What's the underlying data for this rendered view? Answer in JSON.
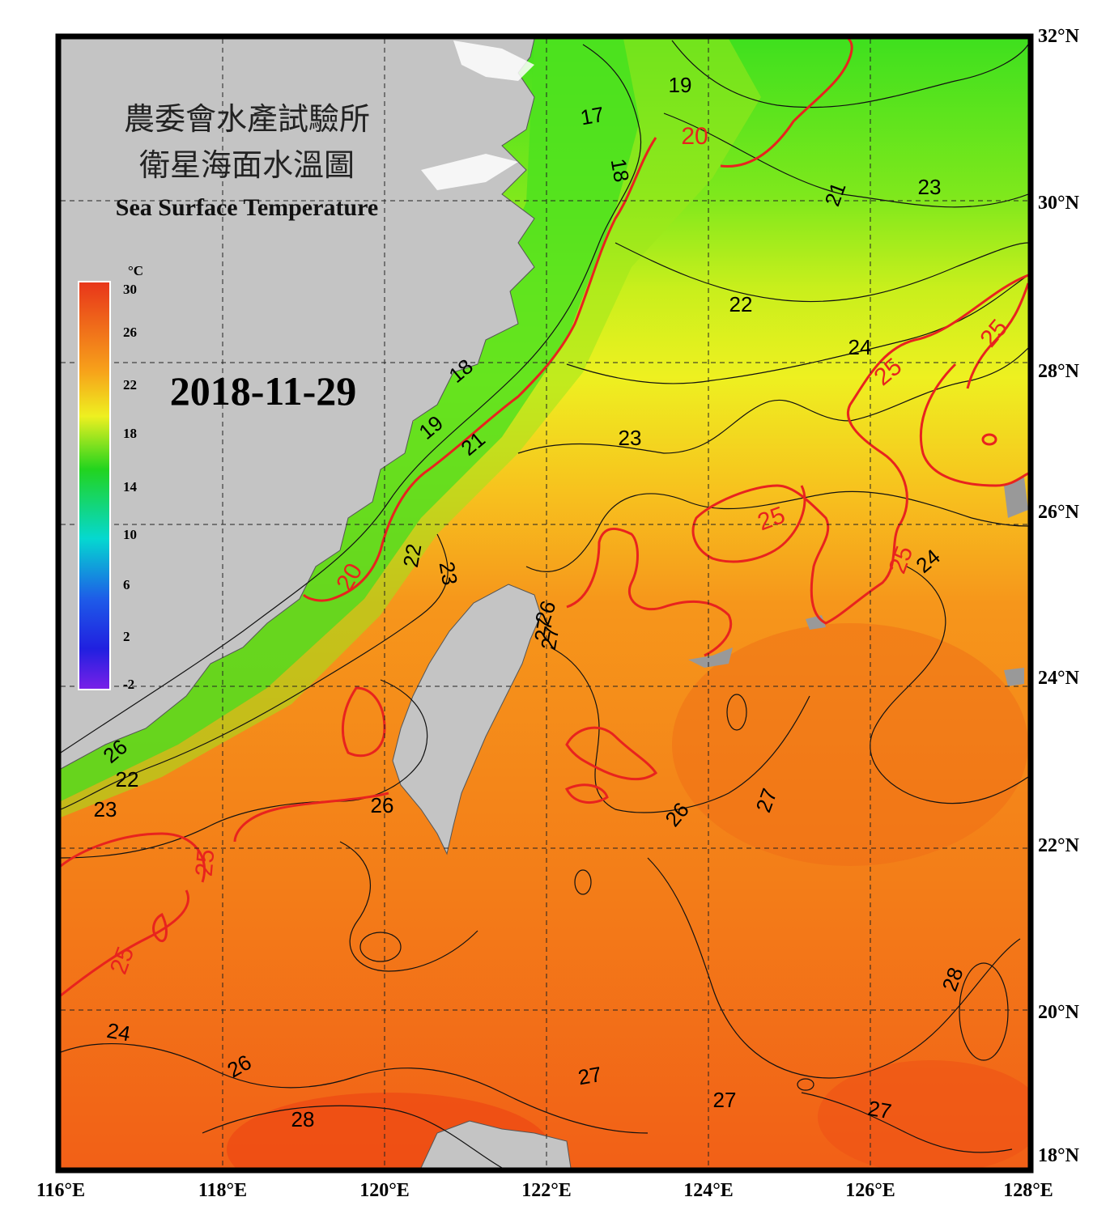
{
  "title": {
    "line1": "農委會水產試驗所",
    "line2": "衛星海面水溫圖",
    "english": "Sea Surface Temperature"
  },
  "date": "2018-11-29",
  "colorbar": {
    "unit": "°C",
    "ticks": [
      "30",
      "26",
      "22",
      "18",
      "14",
      "10",
      "6",
      "2",
      "-2"
    ],
    "colors": [
      "#e8351a",
      "#f7a21a",
      "#eef020",
      "#22d41e",
      "#05d8d0",
      "#1e5ae8",
      "#7a20e8"
    ]
  },
  "axes": {
    "lon_labels": [
      "116°E",
      "118°E",
      "120°E",
      "122°E",
      "124°E",
      "126°E",
      "128°E"
    ],
    "lat_labels": [
      "32°N",
      "30°N",
      "28°N",
      "26°N",
      "24°N",
      "22°N",
      "20°N",
      "18°N"
    ]
  },
  "contour_labels_black": [
    "19",
    "17",
    "18",
    "21",
    "23",
    "22",
    "24",
    "18",
    "19",
    "21",
    "23",
    "22",
    "23",
    "26",
    "24",
    "26",
    "27",
    "26",
    "27",
    "26",
    "22",
    "23",
    "24",
    "26",
    "27",
    "27",
    "28",
    "27",
    "28",
    "27"
  ],
  "contour_labels_red": [
    "20",
    "25",
    "25",
    "25",
    "25",
    "20",
    "25",
    "25"
  ],
  "colors": {
    "land": "#c4c4c4",
    "isotherm_red": "#e8231e",
    "isotherm_black": "#111111",
    "frame": "#000000"
  }
}
